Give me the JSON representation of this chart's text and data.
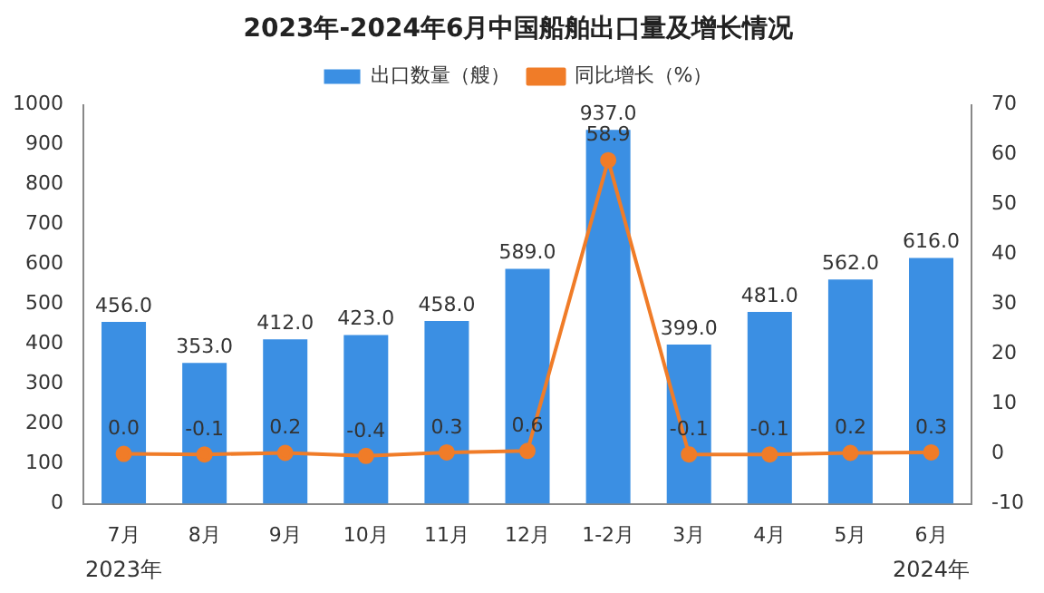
{
  "chart_data": {
    "type": "bar",
    "title": "2023年-2024年6月中国船舶出口量及增长情况",
    "categories": [
      "7月",
      "8月",
      "9月",
      "10月",
      "11月",
      "12月",
      "1-2月",
      "3月",
      "4月",
      "5月",
      "6月"
    ],
    "series": [
      {
        "name": "出口数量（艘）",
        "color": "#3b8fe3",
        "values": [
          456,
          353,
          412,
          423,
          458,
          589,
          937,
          399,
          481,
          562,
          616
        ],
        "value_labels": [
          "456.0",
          "353.0",
          "412.0",
          "423.0",
          "458.0",
          "589.0",
          "937.0",
          "399.0",
          "481.0",
          "562.0",
          "616.0"
        ]
      },
      {
        "name": "同比增长（%）",
        "type": "line",
        "axis": "y2",
        "color": "#f07c28",
        "marker": "circle",
        "values": [
          0.0,
          -0.1,
          0.2,
          -0.4,
          0.3,
          0.6,
          58.9,
          -0.1,
          -0.1,
          0.2,
          0.3
        ],
        "value_labels": [
          "0.0",
          "-0.1",
          "0.2",
          "-0.4",
          "0.3",
          "0.6",
          "58.9",
          "-0.1",
          "-0.1",
          "0.2",
          "0.3"
        ]
      }
    ],
    "ylim": [
      0,
      1000
    ],
    "yticks": [
      0,
      100,
      200,
      300,
      400,
      500,
      600,
      700,
      800,
      900,
      1000
    ],
    "y2lim": [
      -10,
      70
    ],
    "y2ticks": [
      -10,
      0,
      10,
      20,
      30,
      40,
      50,
      60,
      70
    ],
    "grid": false,
    "legend": "top",
    "annotations": [
      "2023年",
      "2024年"
    ]
  }
}
